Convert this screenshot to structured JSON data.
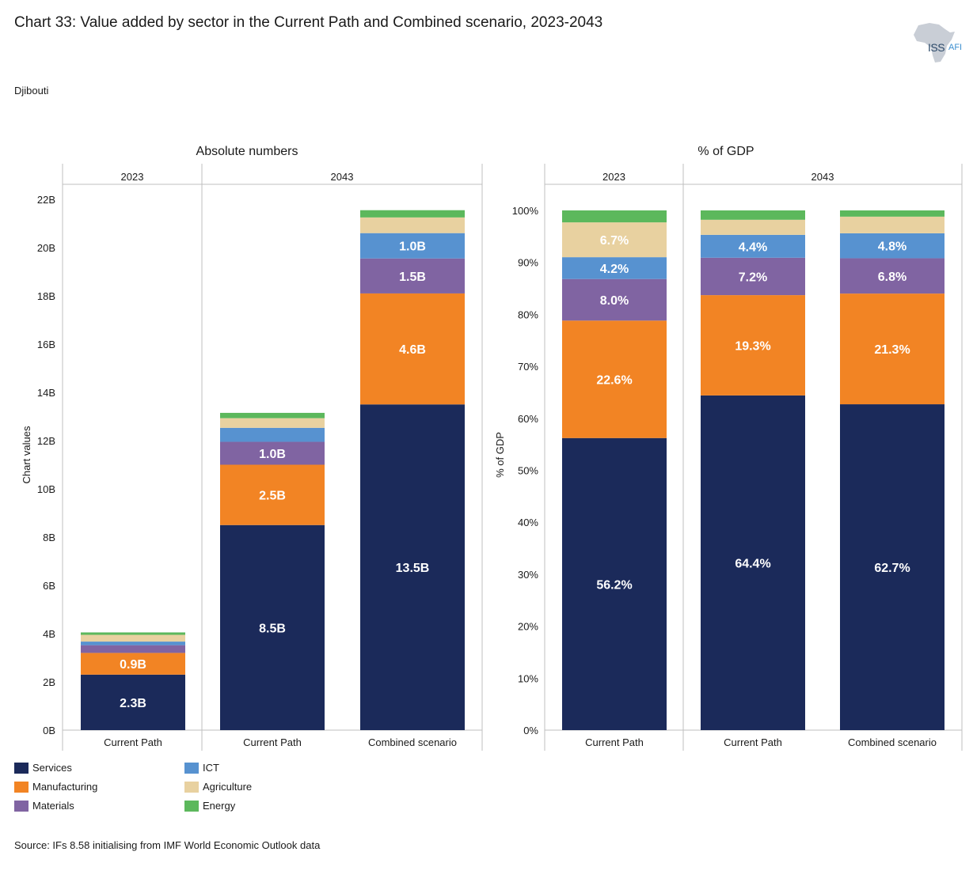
{
  "title": "Chart 33: Value added by sector in the Current Path and Combined scenario, 2023-2043",
  "subtitle": "Djibouti",
  "logo": {
    "iss": "ISS",
    "afi": "AFI"
  },
  "source": "Source: IFs 8.58 initialising from IMF World Economic Outlook data",
  "colors": {
    "Services": "#1b2a5a",
    "Manufacturing": "#f28424",
    "Materials": "#8064a2",
    "ICT": "#5792d0",
    "Agriculture": "#e8d1a0",
    "Energy": "#5cb85c"
  },
  "legend": [
    {
      "name": "Services",
      "color": "#1b2a5a"
    },
    {
      "name": "ICT",
      "color": "#5792d0"
    },
    {
      "name": "Manufacturing",
      "color": "#f28424"
    },
    {
      "name": "Agriculture",
      "color": "#e8d1a0"
    },
    {
      "name": "Materials",
      "color": "#8064a2"
    },
    {
      "name": "Energy",
      "color": "#5cb85c"
    }
  ],
  "chart_data": [
    {
      "type": "bar",
      "stacked": true,
      "title": "Absolute numbers",
      "ylabel": "Chart values",
      "ylim": [
        0,
        22
      ],
      "yticks": [
        "0B",
        "2B",
        "4B",
        "6B",
        "8B",
        "10B",
        "12B",
        "14B",
        "16B",
        "18B",
        "20B",
        "22B"
      ],
      "groups": [
        {
          "label": "2023",
          "categories": [
            "Current Path"
          ]
        },
        {
          "label": "2043",
          "categories": [
            "Current Path",
            "Combined scenario"
          ]
        }
      ],
      "categories": [
        "Current Path",
        "Current Path",
        "Combined scenario"
      ],
      "series": [
        {
          "name": "Services",
          "values": [
            2.3,
            8.5,
            13.5
          ],
          "labels": [
            "2.3B",
            "8.5B",
            "13.5B"
          ]
        },
        {
          "name": "Manufacturing",
          "values": [
            0.9,
            2.5,
            4.6
          ],
          "labels": [
            "0.9B",
            "2.5B",
            "4.6B"
          ]
        },
        {
          "name": "Materials",
          "values": [
            0.32,
            0.95,
            1.45
          ],
          "labels": [
            "",
            "1.0B",
            "1.5B"
          ]
        },
        {
          "name": "ICT",
          "values": [
            0.15,
            0.58,
            1.05
          ],
          "labels": [
            "",
            "",
            "1.0B"
          ]
        },
        {
          "name": "Agriculture",
          "values": [
            0.28,
            0.4,
            0.65
          ],
          "labels": [
            "",
            "",
            ""
          ]
        },
        {
          "name": "Energy",
          "values": [
            0.1,
            0.22,
            0.3
          ],
          "labels": [
            "",
            "",
            ""
          ]
        }
      ]
    },
    {
      "type": "bar",
      "stacked": true,
      "title": "% of GDP",
      "ylabel": "% of GDP",
      "ylim": [
        0,
        100
      ],
      "yticks": [
        "0%",
        "10%",
        "20%",
        "30%",
        "40%",
        "50%",
        "60%",
        "70%",
        "80%",
        "90%",
        "100%"
      ],
      "groups": [
        {
          "label": "2023",
          "categories": [
            "Current Path"
          ]
        },
        {
          "label": "2043",
          "categories": [
            "Current Path",
            "Combined scenario"
          ]
        }
      ],
      "categories": [
        "Current Path",
        "Current Path",
        "Combined scenario"
      ],
      "series": [
        {
          "name": "Services",
          "values": [
            56.2,
            64.4,
            62.7
          ],
          "labels": [
            "56.2%",
            "64.4%",
            "62.7%"
          ]
        },
        {
          "name": "Manufacturing",
          "values": [
            22.6,
            19.3,
            21.3
          ],
          "labels": [
            "22.6%",
            "19.3%",
            "21.3%"
          ]
        },
        {
          "name": "Materials",
          "values": [
            8.0,
            7.2,
            6.8
          ],
          "labels": [
            "8.0%",
            "7.2%",
            "6.8%"
          ]
        },
        {
          "name": "ICT",
          "values": [
            4.2,
            4.4,
            4.8
          ],
          "labels": [
            "4.2%",
            "4.4%",
            "4.8%"
          ]
        },
        {
          "name": "Agriculture",
          "values": [
            6.7,
            2.9,
            3.2
          ],
          "labels": [
            "6.7%",
            "",
            ""
          ]
        },
        {
          "name": "Energy",
          "values": [
            2.3,
            1.8,
            1.2
          ],
          "labels": [
            "",
            "",
            ""
          ]
        }
      ]
    }
  ]
}
